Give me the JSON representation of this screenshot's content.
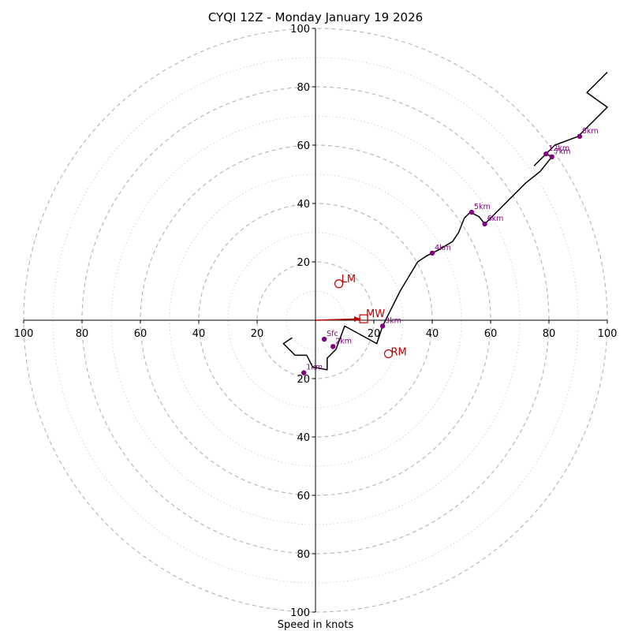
{
  "chart_data": {
    "type": "hodograph",
    "title": "CYQI 12Z - Monday January 19 2026",
    "xlabel": "Speed in knots",
    "max_speed": 100,
    "ring_step": 10,
    "labeled_rings_step": 20,
    "axis_tick_labels": {
      "x": [
        "100",
        "80",
        "60",
        "40",
        "20",
        "20",
        "40",
        "60",
        "80",
        "100"
      ],
      "y": [
        "100",
        "80",
        "60",
        "40",
        "20",
        "20",
        "40",
        "60",
        "80",
        "100"
      ]
    },
    "trace_color": "#000000",
    "height_color": "#800080",
    "motion_color": "#c00000",
    "hodograph_trace": [
      [
        -8,
        -6
      ],
      [
        -11,
        -8
      ],
      [
        -7,
        -12
      ],
      [
        -3,
        -12
      ],
      [
        -1,
        -16
      ],
      [
        4,
        -17
      ],
      [
        4,
        -13
      ],
      [
        7,
        -10
      ],
      [
        10,
        -2
      ],
      [
        21,
        -8
      ],
      [
        23,
        -2
      ],
      [
        26,
        4
      ],
      [
        29,
        10
      ],
      [
        32,
        15
      ],
      [
        35,
        20
      ],
      [
        38,
        22
      ],
      [
        42,
        24
      ],
      [
        47,
        27
      ],
      [
        49,
        30
      ],
      [
        51,
        35
      ],
      [
        53,
        37
      ],
      [
        56,
        35.5
      ],
      [
        58,
        33
      ],
      [
        65,
        40
      ],
      [
        72,
        47
      ],
      [
        77,
        51
      ],
      [
        81,
        56
      ],
      [
        79,
        57
      ],
      [
        75,
        53
      ],
      [
        82,
        60
      ],
      [
        90,
        63
      ],
      [
        97,
        70
      ],
      [
        100,
        73
      ],
      [
        93,
        78
      ],
      [
        100,
        85
      ]
    ],
    "height_markers": [
      {
        "label": "Sfc",
        "u": 3,
        "v": -6.5
      },
      {
        "label": "1km",
        "u": -4,
        "v": -18
      },
      {
        "label": "2km",
        "u": 6,
        "v": -9
      },
      {
        "label": "3km",
        "u": 23,
        "v": -2
      },
      {
        "label": "4km",
        "u": 40,
        "v": 23
      },
      {
        "label": "5km",
        "u": 53.5,
        "v": 37
      },
      {
        "label": "6km",
        "u": 58,
        "v": 33
      },
      {
        "label": "7km",
        "u": 81,
        "v": 56
      },
      {
        "label": "8km",
        "u": 90.5,
        "v": 63
      },
      {
        "label": "12km",
        "u": 79,
        "v": 57
      }
    ],
    "storm_motion": {
      "MW": {
        "label": "MW",
        "u": 16.5,
        "v": 0.5
      },
      "LM": {
        "label": "LM",
        "u": 8,
        "v": 12.5
      },
      "RM": {
        "label": "RM",
        "u": 25,
        "v": -11.5
      }
    }
  }
}
